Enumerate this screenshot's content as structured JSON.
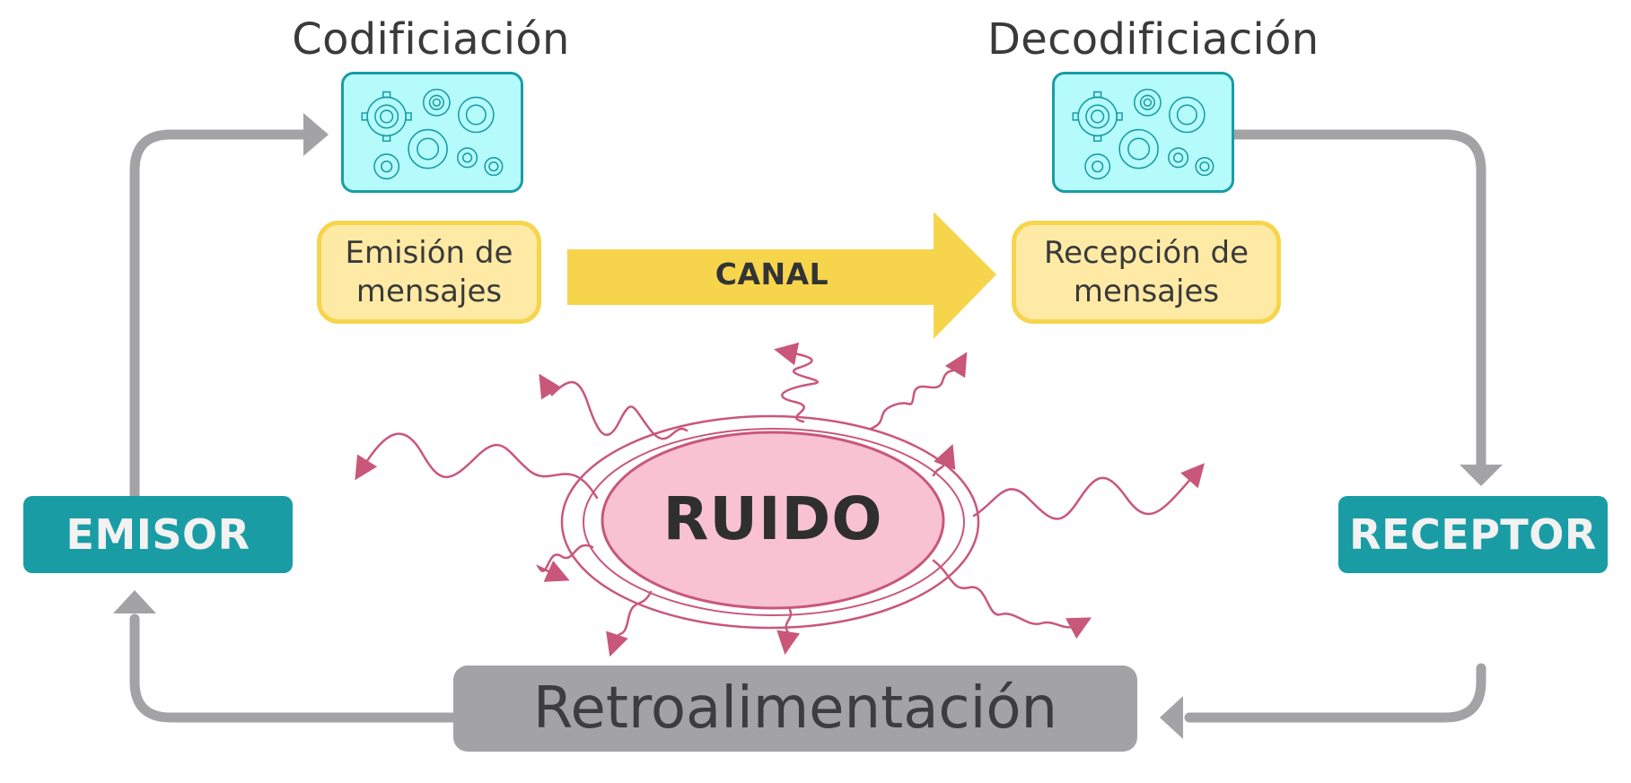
{
  "encoding": {
    "title": "Codificiación"
  },
  "decoding": {
    "title": "Decodificiación"
  },
  "emission": {
    "label": "Emisión de mensajes"
  },
  "reception": {
    "label": "Recepción de mensajes"
  },
  "channel": {
    "label": "CANAL"
  },
  "noise": {
    "label": "RUIDO"
  },
  "sender": {
    "label": "EMISOR"
  },
  "receiver": {
    "label": "RECEPTOR"
  },
  "feedback": {
    "label": "Retroalimentación"
  },
  "colors": {
    "teal": "#1a9ca5",
    "gear_box_fill": "#b5fbfb",
    "message_fill": "#feeaa5",
    "message_border": "#f6d54d",
    "channel_arrow": "#f6d54d",
    "noise_fill": "#f8c2d3",
    "noise_stroke": "#c9577a",
    "flow_arrow": "#a3a3a6"
  },
  "icons": [
    "gears-icon",
    "gears-icon"
  ]
}
